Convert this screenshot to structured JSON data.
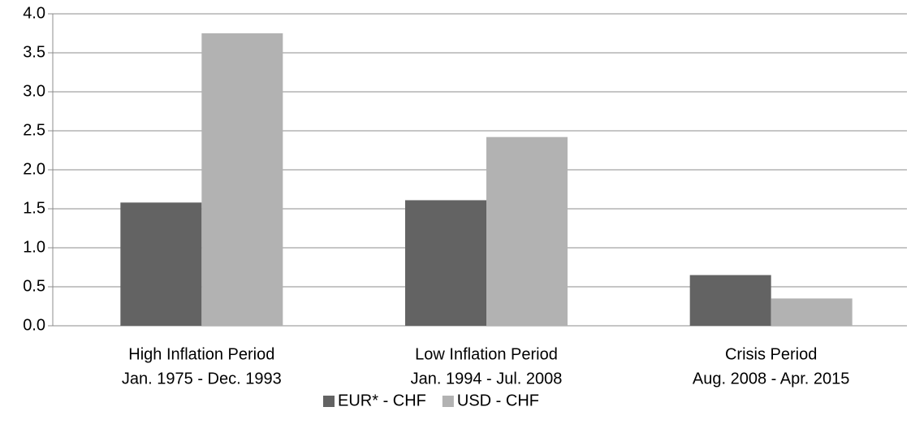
{
  "chart_data": {
    "type": "bar",
    "categories": [
      [
        "High Inflation Period",
        "Jan. 1975 - Dec. 1993"
      ],
      [
        "Low Inflation Period",
        "Jan. 1994 - Jul. 2008"
      ],
      [
        "Crisis Period",
        "Aug. 2008 - Apr. 2015"
      ]
    ],
    "series": [
      {
        "name": "EUR* - CHF",
        "color": "#636363",
        "values": [
          1.58,
          1.61,
          0.65
        ]
      },
      {
        "name": "USD - CHF",
        "color": "#b2b2b2",
        "values": [
          3.75,
          2.42,
          0.35
        ]
      }
    ],
    "ylim": [
      0,
      4
    ],
    "yticks": [
      {
        "value": 0,
        "label": "0.0"
      },
      0.5,
      {
        "value": 1,
        "label": "1.0"
      },
      1.5,
      {
        "value": 2,
        "label": "2.0"
      },
      2.5,
      {
        "value": 3,
        "label": "3.0"
      },
      3.5,
      {
        "value": 4,
        "label": "4.0"
      }
    ],
    "grid": true,
    "legend": "bottom"
  }
}
